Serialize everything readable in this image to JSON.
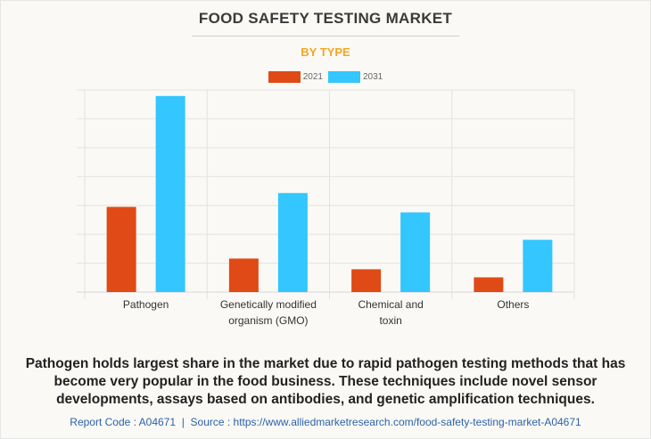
{
  "title": "FOOD SAFETY TESTING MARKET",
  "subtitle": "BY TYPE",
  "description": "Pathogen holds largest share in the market due to rapid pathogen testing methods that has become very popular in the food business. These techniques include novel sensor developments, assays based on antibodies, and genetic amplification techniques.",
  "footer": {
    "report_code": "Report Code : A04671",
    "separator": "|",
    "source": "Source : https://www.alliedmarketresearch.com/food-safety-testing-market-A04671"
  },
  "colors": {
    "2021": "#e04a16",
    "2031": "#33c6ff",
    "title": "#3a3a3a",
    "subtitle": "#f5a623",
    "footer": "#2d62a8"
  },
  "chart_data": {
    "type": "bar",
    "title": "FOOD SAFETY TESTING MARKET",
    "subtitle": "BY TYPE",
    "categories": [
      [
        "Pathogen"
      ],
      [
        "Genetically modified",
        "organism (GMO)"
      ],
      [
        "Chemical and",
        "toxin"
      ],
      [
        "Others"
      ]
    ],
    "series": [
      {
        "name": "2021",
        "color": "#e04a16",
        "values": [
          2.95,
          1.16,
          0.79,
          0.51
        ]
      },
      {
        "name": "2031",
        "color": "#33c6ff",
        "values": [
          6.79,
          3.43,
          2.76,
          1.81
        ]
      }
    ],
    "ylim": [
      0,
      7
    ],
    "y_tick_labels_shown": false,
    "grid": true,
    "legend": "top"
  }
}
